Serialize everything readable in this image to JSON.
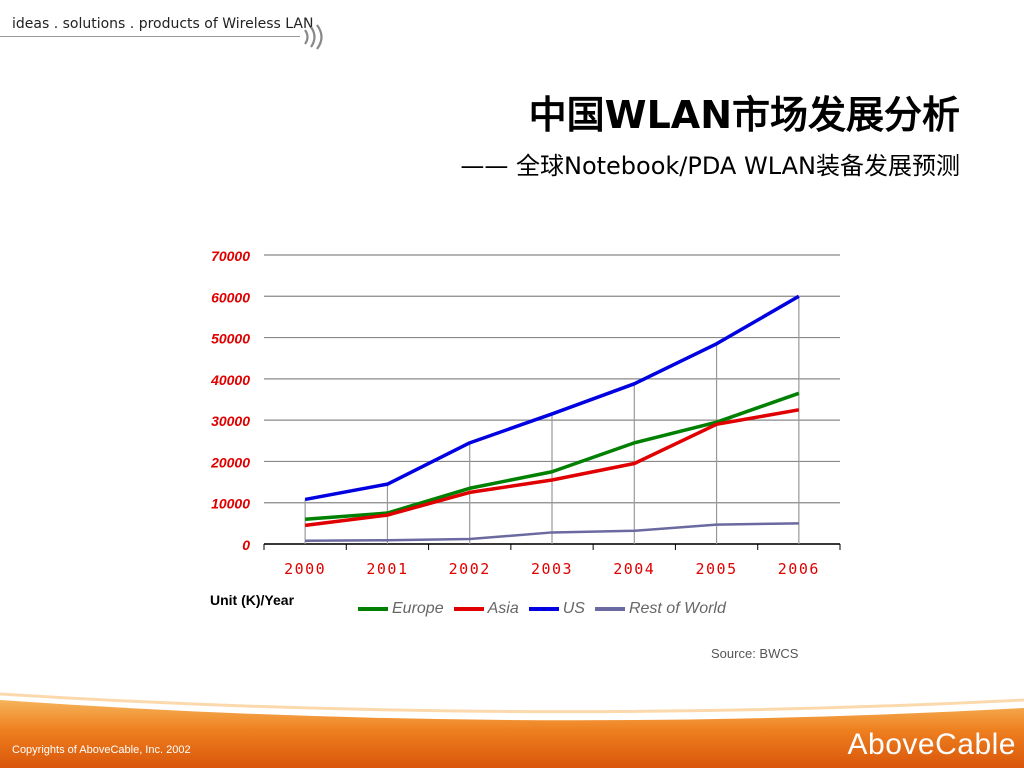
{
  "header": {
    "tagline": "ideas . solutions . products of Wireless LAN",
    "title": "中国WLAN市场发展分析",
    "subtitle": "—— 全球Notebook/PDA WLAN装备发展预测"
  },
  "chart_data": {
    "type": "line",
    "categories": [
      "2000",
      "2001",
      "2002",
      "2003",
      "2004",
      "2005",
      "2006"
    ],
    "series": [
      {
        "name": "Europe",
        "color": "#008000",
        "values": [
          6000,
          7500,
          13500,
          17500,
          24500,
          29500,
          36500
        ]
      },
      {
        "name": "Asia",
        "color": "#e00000",
        "values": [
          4500,
          7000,
          12500,
          15500,
          19500,
          29000,
          32500
        ]
      },
      {
        "name": "US",
        "color": "#0000e0",
        "values": [
          10800,
          14500,
          24500,
          31500,
          38800,
          48500,
          60000
        ]
      },
      {
        "name": "Rest of World",
        "color": "#6a6aa0",
        "values": [
          800,
          900,
          1200,
          2800,
          3200,
          4700,
          5000
        ]
      }
    ],
    "yticks": [
      "0",
      "10000",
      "20000",
      "30000",
      "40000",
      "50000",
      "60000",
      "70000"
    ],
    "ylim": [
      0,
      70000
    ],
    "ylabel": "",
    "xlabel": "",
    "grid": true,
    "legend_position": "bottom"
  },
  "unit_label": "Unit (K)/Year",
  "source": "Source: BWCS",
  "footer": {
    "copyright": "Copyrights of AboveCable, Inc. 2002",
    "brand": "AboveCable"
  }
}
